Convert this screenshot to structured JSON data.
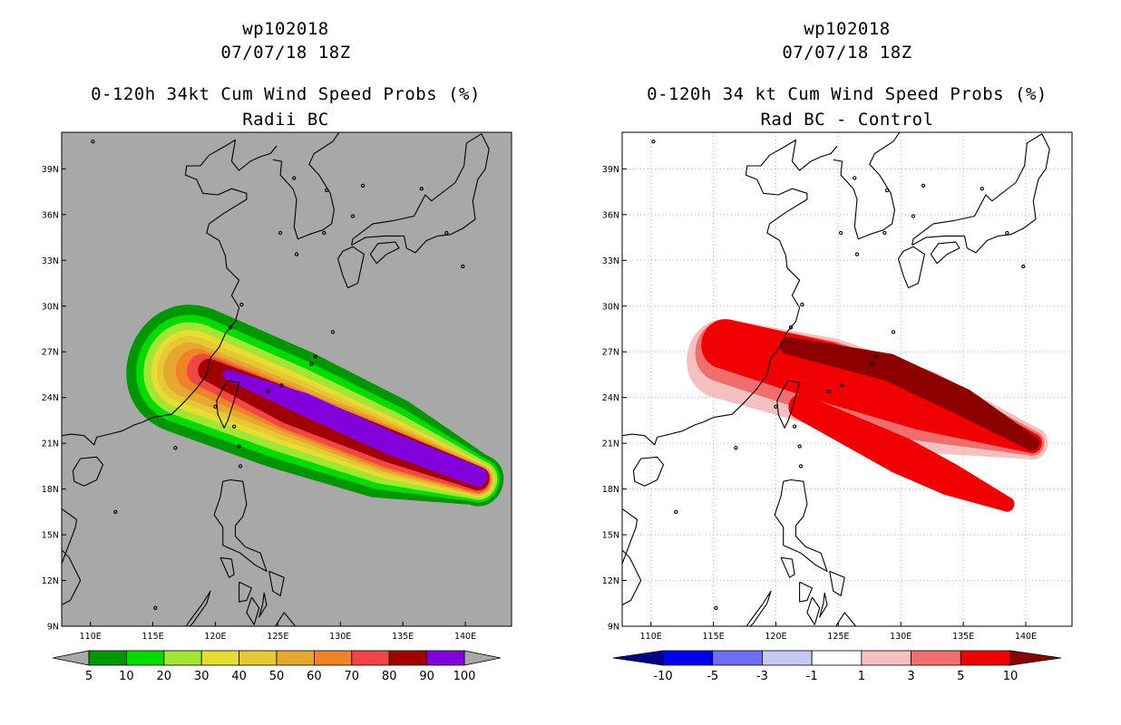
{
  "chart_data": [
    {
      "type": "heatmap",
      "case_id": "wp102018",
      "date": "07/07/18 18Z",
      "title": "0-120h 34kt Cum Wind Speed Probs (%)",
      "subtitle": "Radii BC",
      "x_ticks": [
        "110E",
        "115E",
        "120E",
        "125E",
        "130E",
        "135E",
        "140E"
      ],
      "y_ticks": [
        "9N",
        "12N",
        "15N",
        "18N",
        "21N",
        "24N",
        "27N",
        "30N",
        "33N",
        "36N",
        "39N"
      ],
      "xlim": [
        107.7,
        143.7
      ],
      "ylim": [
        9,
        41.4
      ],
      "colorbar_labels": [
        "5",
        "10",
        "20",
        "30",
        "40",
        "50",
        "60",
        "70",
        "80",
        "90",
        "100"
      ],
      "colors": [
        "#009600",
        "#00dc00",
        "#a0e632",
        "#e6dc32",
        "#e6c832",
        "#e6a830",
        "#f08228",
        "#f04646",
        "#a00000",
        "#8200dc"
      ],
      "land_color": "#a8a8a8",
      "fields": [
        {
          "level": 5,
          "track": [
            [
              118,
              25.8
            ],
            [
              126,
              23.2
            ],
            [
              134,
              20.6
            ],
            [
              141,
              18.6
            ]
          ],
          "radius": [
            5.2,
            4.9,
            4.1,
            2.1
          ]
        },
        {
          "level": 10,
          "track": [
            [
              118,
              25.8
            ],
            [
              126,
              23.2
            ],
            [
              134,
              20.6
            ],
            [
              141,
              18.6
            ]
          ],
          "radius": [
            4.4,
            4.1,
            3.4,
            1.8
          ]
        },
        {
          "level": 20,
          "track": [
            [
              118,
              25.8
            ],
            [
              126,
              23.2
            ],
            [
              134,
              20.6
            ],
            [
              141,
              18.6
            ]
          ],
          "radius": [
            3.8,
            3.5,
            2.9,
            1.6
          ]
        },
        {
          "level": 30,
          "track": [
            [
              118,
              25.8
            ],
            [
              126,
              23.2
            ],
            [
              134,
              20.6
            ],
            [
              141,
              18.6
            ]
          ],
          "radius": [
            3.2,
            2.9,
            2.4,
            1.4
          ]
        },
        {
          "level": 40,
          "track": [
            [
              118,
              25.8
            ],
            [
              126,
              23.2
            ],
            [
              134,
              20.6
            ],
            [
              141,
              18.6
            ]
          ],
          "radius": [
            2.7,
            2.5,
            2.1,
            1.3
          ]
        },
        {
          "level": 50,
          "track": [
            [
              118,
              25.8
            ],
            [
              126,
              23.2
            ],
            [
              134,
              20.6
            ],
            [
              141,
              18.6
            ]
          ],
          "radius": [
            2.2,
            2.1,
            1.9,
            1.2
          ]
        },
        {
          "level": 60,
          "track": [
            [
              118.5,
              25.8
            ],
            [
              126,
              23.2
            ],
            [
              134,
              20.6
            ],
            [
              141,
              18.6
            ]
          ],
          "radius": [
            1.7,
            1.8,
            1.7,
            1.1
          ]
        },
        {
          "level": 70,
          "track": [
            [
              119,
              25.8
            ],
            [
              126,
              23.2
            ],
            [
              134,
              20.6
            ],
            [
              141,
              18.6
            ]
          ],
          "radius": [
            1.3,
            1.6,
            1.5,
            1.0
          ]
        },
        {
          "level": 80,
          "track": [
            [
              119.5,
              25.8
            ],
            [
              126,
              23.4
            ],
            [
              134,
              20.8
            ],
            [
              141,
              18.7
            ]
          ],
          "radius": [
            0.9,
            1.4,
            1.3,
            0.95
          ]
        },
        {
          "level": 90,
          "track": [
            [
              121,
              25.5
            ],
            [
              127,
              23.6
            ],
            [
              134,
              21
            ],
            [
              141,
              18.8
            ]
          ],
          "radius": [
            0.4,
            0.9,
            0.9,
            0.8
          ]
        }
      ]
    },
    {
      "type": "heatmap",
      "case_id": "wp102018",
      "date": "07/07/18 18Z",
      "title": "0-120h 34 kt Cum Wind Speed Probs (%)",
      "subtitle": "Rad BC - Control",
      "x_ticks": [
        "110E",
        "115E",
        "120E",
        "125E",
        "130E",
        "135E",
        "140E"
      ],
      "y_ticks": [
        "9N",
        "12N",
        "15N",
        "18N",
        "21N",
        "24N",
        "27N",
        "30N",
        "33N",
        "36N",
        "39N"
      ],
      "xlim": [
        107.7,
        143.7
      ],
      "ylim": [
        9,
        41.4
      ],
      "colorbar_labels": [
        "-10",
        "-5",
        "-3",
        "-1",
        "1",
        "3",
        "5",
        "10"
      ],
      "colors": [
        "#00008c",
        "#0000f0",
        "#6e6ef0",
        "#c8c8f5",
        "#ffffff",
        "#f5c0c0",
        "#f06e6e",
        "#f00000",
        "#8c0000"
      ],
      "land_color": "#ffffff",
      "fields": [
        {
          "level": 1,
          "track": [
            [
              116,
              26.5
            ],
            [
              124,
              25
            ],
            [
              132,
              23
            ],
            [
              140.5,
              21
            ]
          ],
          "radius": [
            3.2,
            3.6,
            3.3,
            1.3
          ]
        },
        {
          "level": 3,
          "track": [
            [
              116,
              27
            ],
            [
              124,
              25.3
            ],
            [
              132,
              23.3
            ],
            [
              140.5,
              21
            ]
          ],
          "radius": [
            2.5,
            3.0,
            2.7,
            1.0
          ]
        },
        {
          "level": 5,
          "track": [
            [
              116,
              27.5
            ],
            [
              124,
              25.7
            ],
            [
              132,
              23.6
            ],
            [
              140.5,
              21
            ]
          ],
          "radius": [
            2.0,
            2.4,
            2.2,
            0.8
          ]
        },
        {
          "level": 10,
          "track": [
            [
              121,
              27.4
            ],
            [
              129,
              26
            ],
            [
              135,
              23.7
            ],
            [
              140.5,
              21
            ]
          ],
          "radius": [
            0.7,
            1.1,
            1.1,
            0.6
          ]
        },
        {
          "level": 10,
          "track": [
            [
              123,
              23
            ],
            [
              130,
              20
            ],
            [
              134,
              18.5
            ],
            [
              138.5,
              17
            ]
          ],
          "radius": [
            0.3,
            0.8,
            0.8,
            0.4
          ]
        },
        {
          "level": 5,
          "track": [
            [
              122,
              23.4
            ],
            [
              130,
              20.2
            ],
            [
              134,
              18.6
            ],
            [
              138.5,
              17
            ]
          ],
          "radius": [
            1.0,
            1.5,
            1.3,
            0.6
          ]
        }
      ]
    }
  ]
}
